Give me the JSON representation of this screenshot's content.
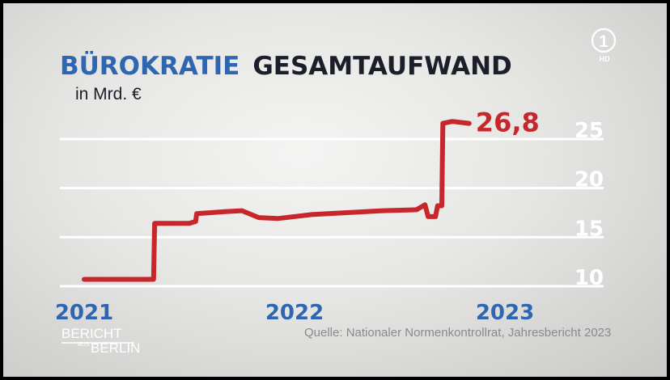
{
  "chart_data": {
    "type": "line",
    "title_part1": "BÜROKRATIE",
    "title_part2": "GESAMTAUFWAND",
    "unit": "in Mrd. €",
    "x_tick_labels": [
      "2021",
      "2022",
      "2023"
    ],
    "y_ticks": [
      "10",
      "15",
      "20",
      "25"
    ],
    "ylim": [
      10,
      27.5
    ],
    "end_label": "26,8",
    "x": [
      2021.0,
      2021.33,
      2021.335,
      2021.5,
      2021.53,
      2021.535,
      2021.67,
      2021.75,
      2021.83,
      2021.92,
      2022.08,
      2022.25,
      2022.42,
      2022.58,
      2022.62,
      2022.635,
      2022.67,
      2022.68,
      2022.7,
      2022.705,
      2022.75,
      2022.83
    ],
    "values": [
      10.7,
      10.7,
      16.4,
      16.4,
      16.6,
      17.4,
      17.6,
      17.7,
      17.0,
      16.9,
      17.3,
      17.5,
      17.7,
      17.8,
      18.3,
      17.1,
      17.1,
      18.2,
      18.2,
      26.6,
      26.8,
      26.6
    ],
    "grid": true,
    "color": "#c7262b"
  },
  "source": "Quelle: Nationaler Normenkontrollrat, Jahresbericht 2023",
  "logo": {
    "line1": "BERICHT",
    "line2": "AUS",
    "line3": "BERLIN"
  },
  "broadcaster": {
    "number": "1",
    "hd_label": "HD"
  }
}
